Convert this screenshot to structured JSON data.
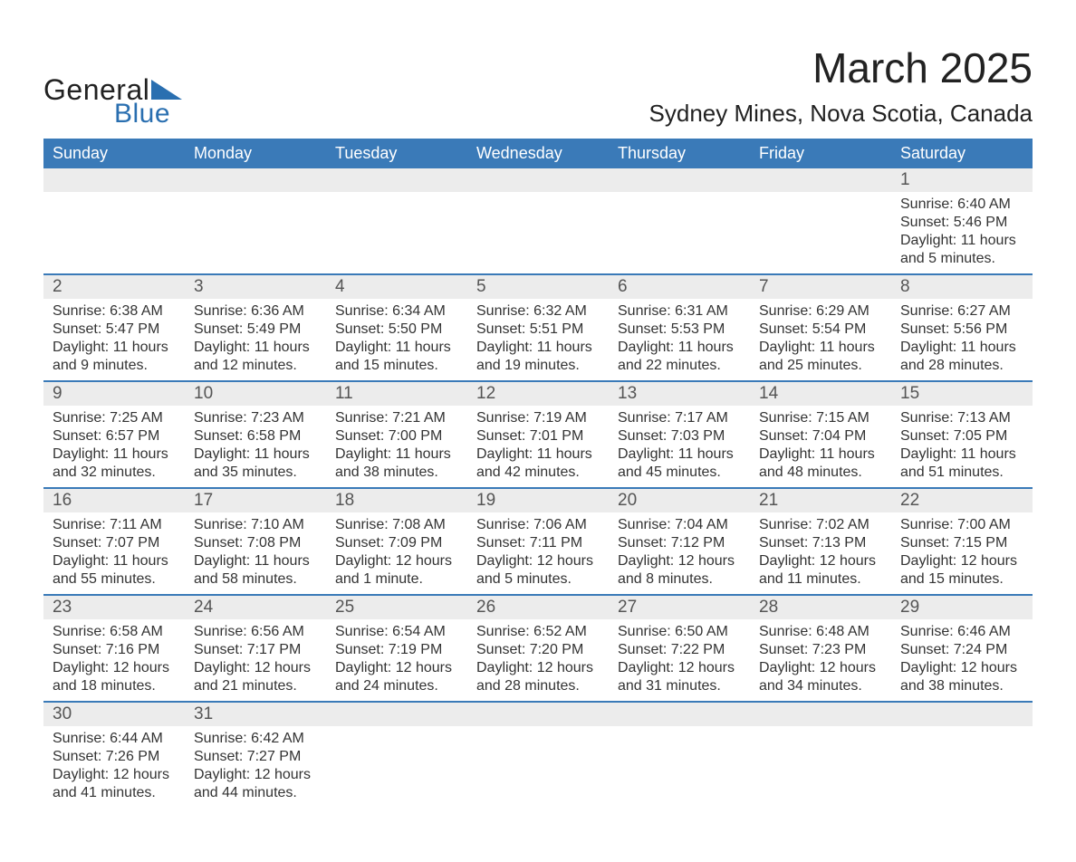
{
  "logo": {
    "text1": "General",
    "text2": "Blue"
  },
  "title": "March 2025",
  "location": "Sydney Mines, Nova Scotia, Canada",
  "colors": {
    "header_bg": "#3a7ab8",
    "header_text": "#ffffff",
    "separator": "#3a7ab8",
    "daynum_bg": "#ececec",
    "text": "#222222",
    "logo_blue": "#2a6fb0"
  },
  "weekdays": [
    "Sunday",
    "Monday",
    "Tuesday",
    "Wednesday",
    "Thursday",
    "Friday",
    "Saturday"
  ],
  "weeks": [
    [
      null,
      null,
      null,
      null,
      null,
      null,
      {
        "n": "1",
        "sr": "Sunrise: 6:40 AM",
        "ss": "Sunset: 5:46 PM",
        "d1": "Daylight: 11 hours",
        "d2": "and 5 minutes."
      }
    ],
    [
      {
        "n": "2",
        "sr": "Sunrise: 6:38 AM",
        "ss": "Sunset: 5:47 PM",
        "d1": "Daylight: 11 hours",
        "d2": "and 9 minutes."
      },
      {
        "n": "3",
        "sr": "Sunrise: 6:36 AM",
        "ss": "Sunset: 5:49 PM",
        "d1": "Daylight: 11 hours",
        "d2": "and 12 minutes."
      },
      {
        "n": "4",
        "sr": "Sunrise: 6:34 AM",
        "ss": "Sunset: 5:50 PM",
        "d1": "Daylight: 11 hours",
        "d2": "and 15 minutes."
      },
      {
        "n": "5",
        "sr": "Sunrise: 6:32 AM",
        "ss": "Sunset: 5:51 PM",
        "d1": "Daylight: 11 hours",
        "d2": "and 19 minutes."
      },
      {
        "n": "6",
        "sr": "Sunrise: 6:31 AM",
        "ss": "Sunset: 5:53 PM",
        "d1": "Daylight: 11 hours",
        "d2": "and 22 minutes."
      },
      {
        "n": "7",
        "sr": "Sunrise: 6:29 AM",
        "ss": "Sunset: 5:54 PM",
        "d1": "Daylight: 11 hours",
        "d2": "and 25 minutes."
      },
      {
        "n": "8",
        "sr": "Sunrise: 6:27 AM",
        "ss": "Sunset: 5:56 PM",
        "d1": "Daylight: 11 hours",
        "d2": "and 28 minutes."
      }
    ],
    [
      {
        "n": "9",
        "sr": "Sunrise: 7:25 AM",
        "ss": "Sunset: 6:57 PM",
        "d1": "Daylight: 11 hours",
        "d2": "and 32 minutes."
      },
      {
        "n": "10",
        "sr": "Sunrise: 7:23 AM",
        "ss": "Sunset: 6:58 PM",
        "d1": "Daylight: 11 hours",
        "d2": "and 35 minutes."
      },
      {
        "n": "11",
        "sr": "Sunrise: 7:21 AM",
        "ss": "Sunset: 7:00 PM",
        "d1": "Daylight: 11 hours",
        "d2": "and 38 minutes."
      },
      {
        "n": "12",
        "sr": "Sunrise: 7:19 AM",
        "ss": "Sunset: 7:01 PM",
        "d1": "Daylight: 11 hours",
        "d2": "and 42 minutes."
      },
      {
        "n": "13",
        "sr": "Sunrise: 7:17 AM",
        "ss": "Sunset: 7:03 PM",
        "d1": "Daylight: 11 hours",
        "d2": "and 45 minutes."
      },
      {
        "n": "14",
        "sr": "Sunrise: 7:15 AM",
        "ss": "Sunset: 7:04 PM",
        "d1": "Daylight: 11 hours",
        "d2": "and 48 minutes."
      },
      {
        "n": "15",
        "sr": "Sunrise: 7:13 AM",
        "ss": "Sunset: 7:05 PM",
        "d1": "Daylight: 11 hours",
        "d2": "and 51 minutes."
      }
    ],
    [
      {
        "n": "16",
        "sr": "Sunrise: 7:11 AM",
        "ss": "Sunset: 7:07 PM",
        "d1": "Daylight: 11 hours",
        "d2": "and 55 minutes."
      },
      {
        "n": "17",
        "sr": "Sunrise: 7:10 AM",
        "ss": "Sunset: 7:08 PM",
        "d1": "Daylight: 11 hours",
        "d2": "and 58 minutes."
      },
      {
        "n": "18",
        "sr": "Sunrise: 7:08 AM",
        "ss": "Sunset: 7:09 PM",
        "d1": "Daylight: 12 hours",
        "d2": "and 1 minute."
      },
      {
        "n": "19",
        "sr": "Sunrise: 7:06 AM",
        "ss": "Sunset: 7:11 PM",
        "d1": "Daylight: 12 hours",
        "d2": "and 5 minutes."
      },
      {
        "n": "20",
        "sr": "Sunrise: 7:04 AM",
        "ss": "Sunset: 7:12 PM",
        "d1": "Daylight: 12 hours",
        "d2": "and 8 minutes."
      },
      {
        "n": "21",
        "sr": "Sunrise: 7:02 AM",
        "ss": "Sunset: 7:13 PM",
        "d1": "Daylight: 12 hours",
        "d2": "and 11 minutes."
      },
      {
        "n": "22",
        "sr": "Sunrise: 7:00 AM",
        "ss": "Sunset: 7:15 PM",
        "d1": "Daylight: 12 hours",
        "d2": "and 15 minutes."
      }
    ],
    [
      {
        "n": "23",
        "sr": "Sunrise: 6:58 AM",
        "ss": "Sunset: 7:16 PM",
        "d1": "Daylight: 12 hours",
        "d2": "and 18 minutes."
      },
      {
        "n": "24",
        "sr": "Sunrise: 6:56 AM",
        "ss": "Sunset: 7:17 PM",
        "d1": "Daylight: 12 hours",
        "d2": "and 21 minutes."
      },
      {
        "n": "25",
        "sr": "Sunrise: 6:54 AM",
        "ss": "Sunset: 7:19 PM",
        "d1": "Daylight: 12 hours",
        "d2": "and 24 minutes."
      },
      {
        "n": "26",
        "sr": "Sunrise: 6:52 AM",
        "ss": "Sunset: 7:20 PM",
        "d1": "Daylight: 12 hours",
        "d2": "and 28 minutes."
      },
      {
        "n": "27",
        "sr": "Sunrise: 6:50 AM",
        "ss": "Sunset: 7:22 PM",
        "d1": "Daylight: 12 hours",
        "d2": "and 31 minutes."
      },
      {
        "n": "28",
        "sr": "Sunrise: 6:48 AM",
        "ss": "Sunset: 7:23 PM",
        "d1": "Daylight: 12 hours",
        "d2": "and 34 minutes."
      },
      {
        "n": "29",
        "sr": "Sunrise: 6:46 AM",
        "ss": "Sunset: 7:24 PM",
        "d1": "Daylight: 12 hours",
        "d2": "and 38 minutes."
      }
    ],
    [
      {
        "n": "30",
        "sr": "Sunrise: 6:44 AM",
        "ss": "Sunset: 7:26 PM",
        "d1": "Daylight: 12 hours",
        "d2": "and 41 minutes."
      },
      {
        "n": "31",
        "sr": "Sunrise: 6:42 AM",
        "ss": "Sunset: 7:27 PM",
        "d1": "Daylight: 12 hours",
        "d2": "and 44 minutes."
      },
      null,
      null,
      null,
      null,
      null
    ]
  ]
}
